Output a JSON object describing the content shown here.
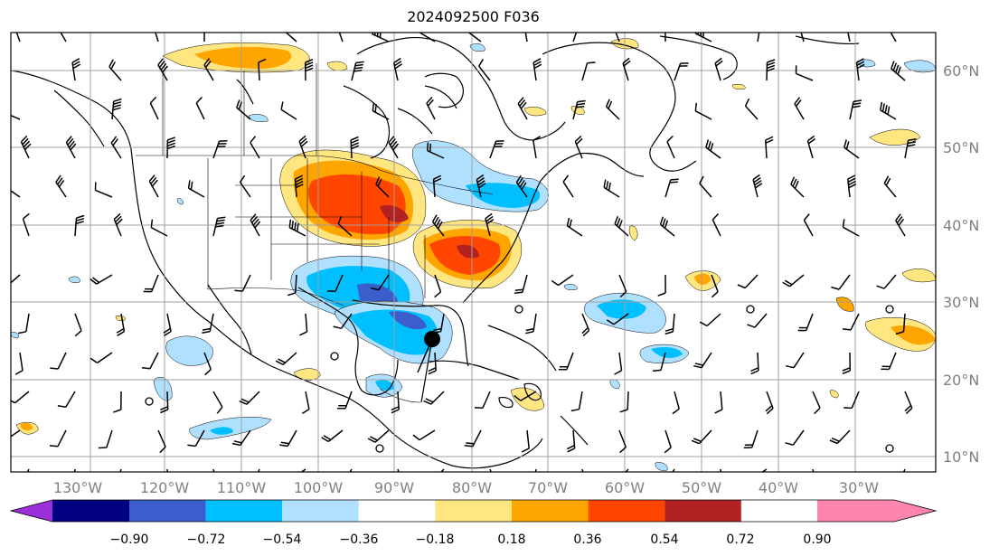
{
  "title": "2024092500 F036",
  "map": {
    "lon_labels": [
      "130°W",
      "120°W",
      "110°W",
      "100°W",
      "90°W",
      "80°W",
      "70°W",
      "60°W",
      "50°W",
      "40°W",
      "30°W"
    ],
    "lat_labels": [
      "60°N",
      "50°N",
      "40°N",
      "30°N",
      "20°N",
      "10°N"
    ],
    "extent": {
      "lon": [
        -138,
        -17
      ],
      "lat": [
        8,
        65
      ]
    }
  },
  "colorbar": {
    "ticks": [
      "−0.90",
      "−0.72",
      "−0.54",
      "−0.36",
      "−0.18",
      "0.18",
      "0.36",
      "0.54",
      "0.72",
      "0.90"
    ],
    "colors": [
      "#9b30d9",
      "#000080",
      "#3a5fcd",
      "#00bfff",
      "#b0e0ff",
      "#ffffff",
      "#ffe680",
      "#ffa500",
      "#ff4500",
      "#b22222",
      "#ff85b0"
    ]
  },
  "colors": {
    "land_border": "#000000",
    "grid": "#a0a0a0"
  }
}
